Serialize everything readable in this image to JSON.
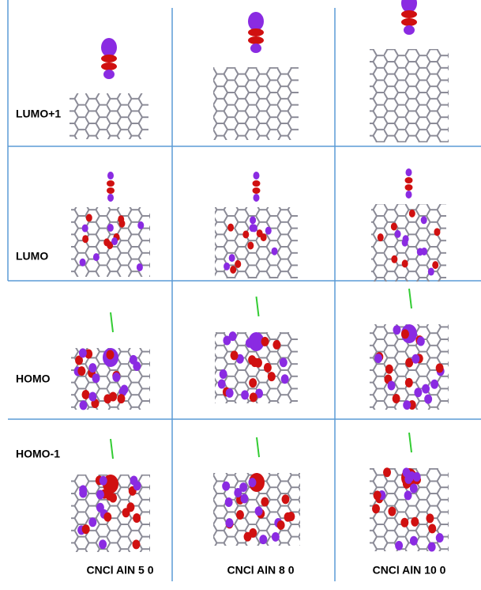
{
  "rows": [
    {
      "label": "LUMO+1"
    },
    {
      "label": "LUMO"
    },
    {
      "label": "HOMO"
    },
    {
      "label": "HOMO-1"
    }
  ],
  "columns": [
    {
      "label": "CNCl AlN 5 0"
    },
    {
      "label": "CNCl AlN 8 0"
    },
    {
      "label": "CNCl AlN 10 0"
    }
  ]
}
